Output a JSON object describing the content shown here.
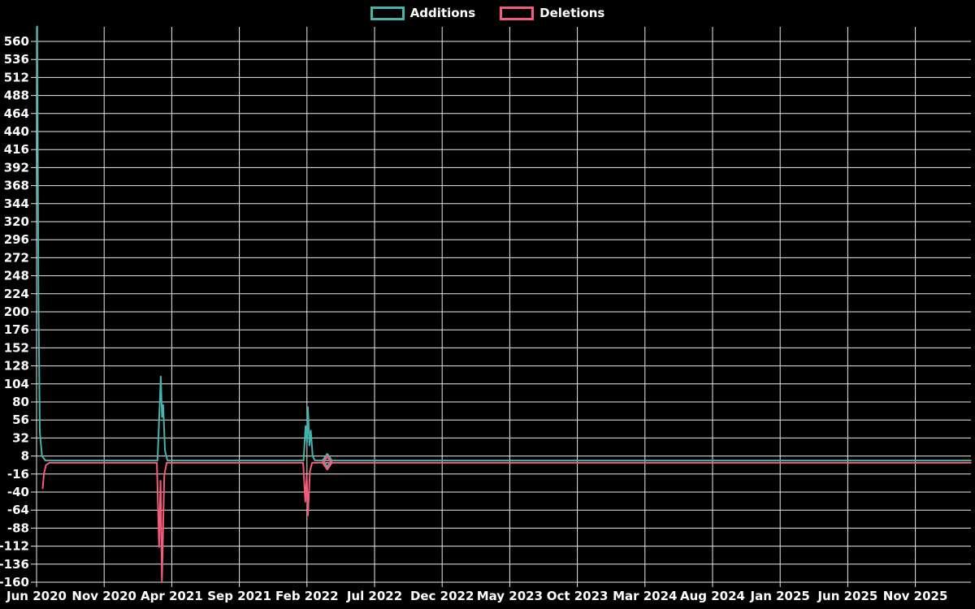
{
  "page": {
    "background": "#000000",
    "text_color": "#ffffff",
    "grid_color": "#ececec"
  },
  "legend": {
    "items": [
      {
        "label": "Additions",
        "color": "#46b3ad"
      },
      {
        "label": "Deletions",
        "color": "#f25c7a"
      }
    ]
  },
  "chart_data": {
    "type": "line",
    "title": "",
    "xlabel": "",
    "ylabel": "",
    "legend_position": "top-center",
    "grid": true,
    "x_axis": {
      "unit": "months since Jun 2020",
      "tick_step_months": 5,
      "tick_labels": [
        "Jun 2020",
        "Nov 2020",
        "Apr 2021",
        "Sep 2021",
        "Feb 2022",
        "Jul 2022",
        "Dec 2022",
        "May 2023",
        "Oct 2023",
        "Mar 2024",
        "Aug 2024",
        "Jan 2025",
        "Jun 2025",
        "Nov 2025"
      ]
    },
    "y_axis": {
      "min": -160,
      "max": 560,
      "step": 24,
      "tick_labels": [
        "560",
        "536",
        "512",
        "488",
        "464",
        "440",
        "416",
        "392",
        "368",
        "344",
        "320",
        "296",
        "272",
        "248",
        "224",
        "200",
        "176",
        "152",
        "128",
        "104",
        "80",
        "56",
        "32",
        "8",
        "-16",
        "-40",
        "-64",
        "-88",
        "-112",
        "-136",
        "-160"
      ]
    },
    "series": [
      {
        "name": "Additions",
        "color": "#46b3ad",
        "points": [
          [
            0.05,
            580
          ],
          [
            0.14,
            224
          ],
          [
            0.24,
            40
          ],
          [
            0.4,
            8
          ],
          [
            0.65,
            2
          ],
          [
            8.95,
            2
          ],
          [
            9.06,
            55
          ],
          [
            9.19,
            114
          ],
          [
            9.28,
            60
          ],
          [
            9.36,
            76
          ],
          [
            9.5,
            15
          ],
          [
            9.68,
            2
          ],
          [
            19.75,
            2
          ],
          [
            19.9,
            48
          ],
          [
            20.0,
            26
          ],
          [
            20.07,
            73
          ],
          [
            20.18,
            22
          ],
          [
            20.28,
            42
          ],
          [
            20.42,
            8
          ],
          [
            20.58,
            2
          ],
          [
            69.1,
            2
          ]
        ]
      },
      {
        "name": "Deletions",
        "color": "#f25c7a",
        "points": [
          [
            0.45,
            -35
          ],
          [
            0.55,
            -15
          ],
          [
            0.7,
            -4
          ],
          [
            0.95,
            -1
          ],
          [
            8.9,
            -1
          ],
          [
            9.06,
            -113
          ],
          [
            9.17,
            -25
          ],
          [
            9.27,
            -159
          ],
          [
            9.45,
            -18
          ],
          [
            9.62,
            -1
          ],
          [
            19.72,
            -1
          ],
          [
            19.88,
            -53
          ],
          [
            19.98,
            -18
          ],
          [
            20.07,
            -71
          ],
          [
            20.22,
            -12
          ],
          [
            20.38,
            -1
          ],
          [
            69.1,
            -1
          ]
        ]
      }
    ],
    "markers": [
      {
        "series": "Additions",
        "shape": "open-diamond",
        "x": 21.5,
        "y": 2
      },
      {
        "series": "Deletions",
        "shape": "open-diamond",
        "x": 21.5,
        "y": -1
      }
    ]
  }
}
